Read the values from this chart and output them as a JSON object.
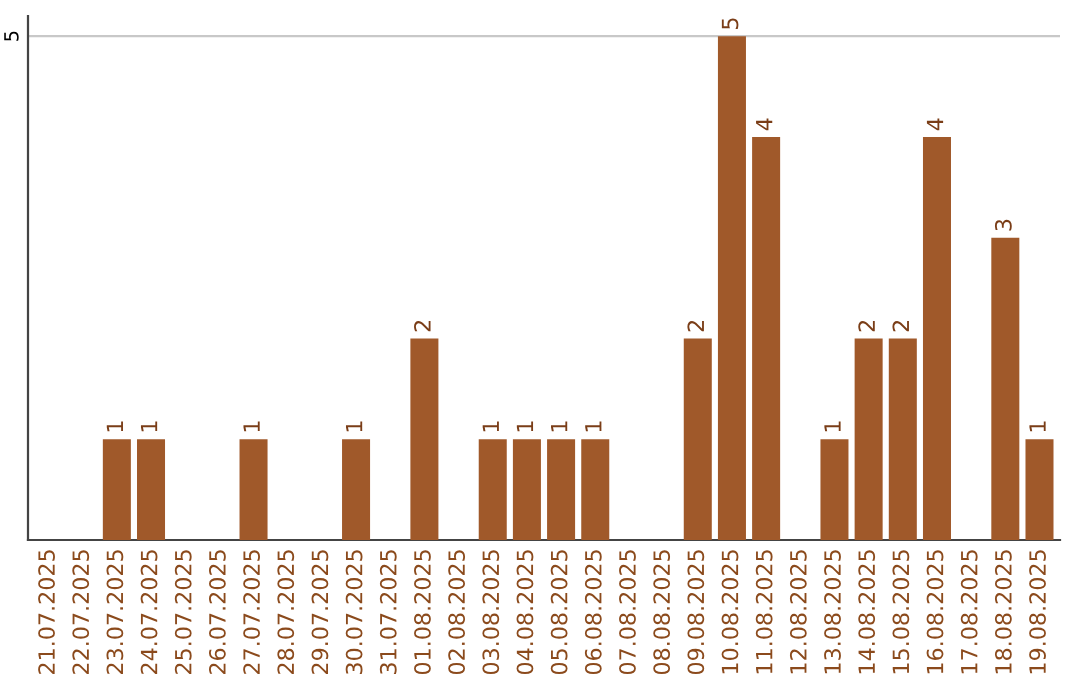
{
  "chart_data": {
    "type": "bar",
    "categories": [
      "21.07.2025",
      "22.07.2025",
      "23.07.2025",
      "24.07.2025",
      "25.07.2025",
      "26.07.2025",
      "27.07.2025",
      "28.07.2025",
      "29.07.2025",
      "30.07.2025",
      "31.07.2025",
      "01.08.2025",
      "02.08.2025",
      "03.08.2025",
      "04.08.2025",
      "05.08.2025",
      "06.08.2025",
      "07.08.2025",
      "08.08.2025",
      "09.08.2025",
      "10.08.2025",
      "11.08.2025",
      "12.08.2025",
      "13.08.2025",
      "14.08.2025",
      "15.08.2025",
      "16.08.2025",
      "17.08.2025",
      "18.08.2025",
      "19.08.2025"
    ],
    "values": [
      null,
      null,
      1,
      1,
      null,
      null,
      1,
      null,
      null,
      1,
      null,
      2,
      null,
      1,
      1,
      1,
      1,
      null,
      null,
      2,
      5,
      4,
      null,
      1,
      2,
      2,
      4,
      null,
      3,
      1
    ],
    "color": "#a0592a",
    "ylim": [
      0,
      5.2
    ],
    "yticks": [
      5
    ],
    "grid": "y",
    "data_labels": true
  }
}
